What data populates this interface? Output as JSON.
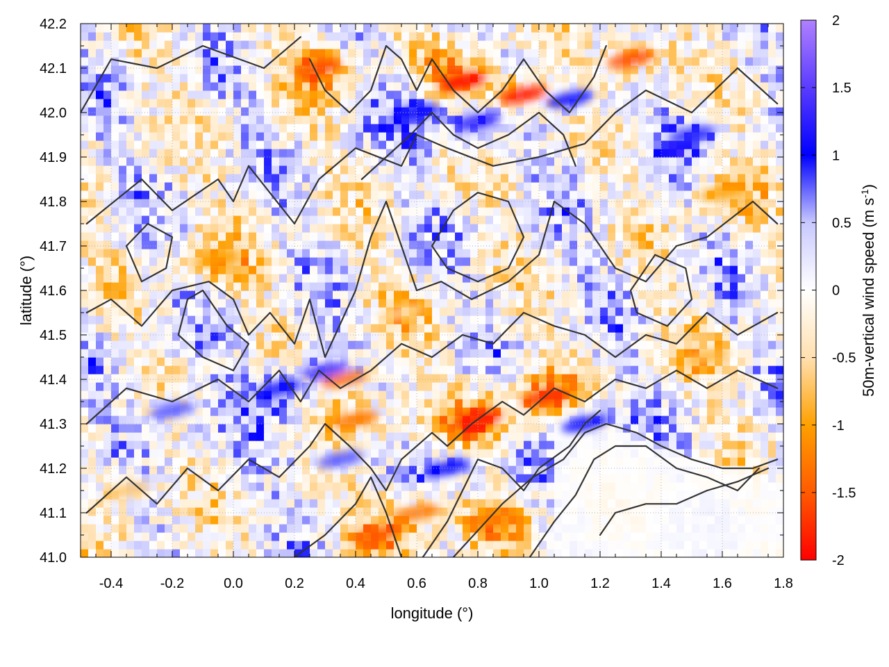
{
  "chart_data": {
    "type": "heatmap",
    "title": "",
    "xlabel": "longitude (°)",
    "ylabel": "latitude (°)",
    "colorbar_label": "50m-vertical wind speed (m s",
    "colorbar_label_exponent": "-1",
    "colorbar_label_suffix": ")",
    "xlim": [
      -0.5,
      1.8
    ],
    "ylim": [
      41.0,
      42.2
    ],
    "zlim": [
      -2,
      2
    ],
    "x_ticks": [
      -0.4,
      -0.2,
      0.0,
      0.2,
      0.4,
      0.6,
      0.8,
      1.0,
      1.2,
      1.4,
      1.6,
      1.8
    ],
    "x_tick_labels": [
      "-0.4",
      "-0.2",
      "0.0",
      "0.2",
      "0.4",
      "0.6",
      "0.8",
      "1.0",
      "1.2",
      "1.4",
      "1.6",
      "1.8"
    ],
    "y_ticks": [
      41.0,
      41.1,
      41.2,
      41.3,
      41.4,
      41.5,
      41.6,
      41.7,
      41.8,
      41.9,
      42.0,
      42.1,
      42.2
    ],
    "y_tick_labels": [
      "41.0",
      "41.1",
      "41.2",
      "41.3",
      "41.4",
      "41.5",
      "41.6",
      "41.7",
      "41.8",
      "41.9",
      "42.0",
      "42.1",
      "42.2"
    ],
    "colorbar_ticks": [
      2,
      1.5,
      1,
      0.5,
      0,
      -0.5,
      -1,
      -1.5,
      -2
    ],
    "colorbar_tick_labels": [
      "2",
      "1.5",
      "1",
      "0.5",
      "0",
      "-0.5",
      "-1",
      "-1.5",
      "-2"
    ],
    "colormap": [
      "#ff0000",
      "#ff5a00",
      "#ffa000",
      "#ffe0b0",
      "#ffffff",
      "#c8c8ff",
      "#0000ff",
      "#5a3cff",
      "#b080ff"
    ],
    "grid": true,
    "contour_color": "#333333",
    "hotspots": [
      {
        "lon": 0.75,
        "lat": 42.07,
        "w": -2.0
      },
      {
        "lon": 0.95,
        "lat": 42.04,
        "w": -1.9
      },
      {
        "lon": 0.28,
        "lat": 42.1,
        "w": -1.6
      },
      {
        "lon": 1.3,
        "lat": 42.12,
        "w": -1.6
      },
      {
        "lon": 0.8,
        "lat": 41.31,
        "w": -1.9
      },
      {
        "lon": 1.02,
        "lat": 41.36,
        "w": -1.7
      },
      {
        "lon": 0.36,
        "lat": 41.4,
        "w": -1.4
      },
      {
        "lon": 0.4,
        "lat": 41.31,
        "w": -1.3
      },
      {
        "lon": -0.05,
        "lat": 41.67,
        "w": -1.0
      },
      {
        "lon": 1.6,
        "lat": 41.82,
        "w": -1.0
      },
      {
        "lon": 0.47,
        "lat": 41.05,
        "w": -1.5
      },
      {
        "lon": 0.85,
        "lat": 41.08,
        "w": -1.2
      },
      {
        "lon": 0.6,
        "lat": 41.1,
        "w": -1.3
      },
      {
        "lon": 0.8,
        "lat": 41.98,
        "w": 1.2
      },
      {
        "lon": 0.6,
        "lat": 42.0,
        "w": 1.1
      },
      {
        "lon": 0.3,
        "lat": 41.42,
        "w": 1.3
      },
      {
        "lon": 0.15,
        "lat": 41.38,
        "w": 1.1
      },
      {
        "lon": 1.15,
        "lat": 41.3,
        "w": 1.0
      },
      {
        "lon": 1.5,
        "lat": 41.95,
        "w": 0.9
      },
      {
        "lon": 1.1,
        "lat": 42.03,
        "w": 1.0
      },
      {
        "lon": -0.2,
        "lat": 41.33,
        "w": 0.8
      },
      {
        "lon": 0.7,
        "lat": 41.2,
        "w": 1.0
      },
      {
        "lon": 0.35,
        "lat": 41.22,
        "w": 0.8
      },
      {
        "lon": 1.55,
        "lat": 41.45,
        "w": -0.8
      },
      {
        "lon": 0.55,
        "lat": 41.55,
        "w": -0.6
      },
      {
        "lon": -0.35,
        "lat": 41.15,
        "w": -0.7
      }
    ],
    "contour_lines": [
      [
        [
          -0.5,
          42.0
        ],
        [
          -0.4,
          42.12
        ],
        [
          -0.25,
          42.1
        ],
        [
          -0.1,
          42.15
        ],
        [
          0.1,
          42.1
        ],
        [
          0.22,
          42.17
        ]
      ],
      [
        [
          -0.48,
          41.75
        ],
        [
          -0.3,
          41.85
        ],
        [
          -0.2,
          41.78
        ],
        [
          -0.05,
          41.85
        ],
        [
          0.0,
          41.8
        ],
        [
          0.05,
          41.88
        ],
        [
          0.2,
          41.75
        ],
        [
          0.28,
          41.85
        ],
        [
          0.4,
          41.92
        ],
        [
          0.55,
          41.88
        ],
        [
          0.6,
          41.95
        ],
        [
          0.7,
          41.92
        ],
        [
          0.85,
          41.88
        ],
        [
          1.0,
          41.9
        ],
        [
          1.15,
          41.93
        ],
        [
          1.25,
          42.0
        ],
        [
          1.35,
          42.05
        ],
        [
          1.5,
          42.0
        ],
        [
          1.65,
          42.1
        ],
        [
          1.78,
          42.02
        ]
      ],
      [
        [
          -0.48,
          41.55
        ],
        [
          -0.4,
          41.58
        ],
        [
          -0.3,
          41.52
        ],
        [
          -0.2,
          41.6
        ],
        [
          -0.08,
          41.62
        ],
        [
          0.0,
          41.58
        ],
        [
          0.05,
          41.5
        ],
        [
          0.12,
          41.55
        ],
        [
          0.2,
          41.48
        ],
        [
          0.25,
          41.58
        ],
        [
          0.3,
          41.45
        ],
        [
          0.4,
          41.6
        ],
        [
          0.45,
          41.72
        ],
        [
          0.5,
          41.8
        ],
        [
          0.55,
          41.7
        ],
        [
          0.6,
          41.6
        ],
        [
          0.68,
          41.62
        ],
        [
          0.78,
          41.58
        ],
        [
          0.9,
          41.62
        ],
        [
          1.0,
          41.68
        ],
        [
          1.05,
          41.8
        ],
        [
          1.15,
          41.75
        ],
        [
          1.25,
          41.65
        ],
        [
          1.35,
          41.62
        ],
        [
          1.45,
          41.7
        ],
        [
          1.55,
          41.72
        ],
        [
          1.7,
          41.8
        ],
        [
          1.78,
          41.75
        ]
      ],
      [
        [
          -0.48,
          41.3
        ],
        [
          -0.35,
          41.38
        ],
        [
          -0.2,
          41.35
        ],
        [
          -0.05,
          41.4
        ],
        [
          0.05,
          41.35
        ],
        [
          0.15,
          41.42
        ],
        [
          0.22,
          41.35
        ],
        [
          0.28,
          41.42
        ],
        [
          0.35,
          41.38
        ],
        [
          0.45,
          41.42
        ],
        [
          0.55,
          41.48
        ],
        [
          0.65,
          41.45
        ],
        [
          0.75,
          41.5
        ],
        [
          0.85,
          41.48
        ],
        [
          0.95,
          41.55
        ],
        [
          1.05,
          41.52
        ],
        [
          1.15,
          41.5
        ],
        [
          1.25,
          41.45
        ],
        [
          1.35,
          41.5
        ],
        [
          1.45,
          41.48
        ],
        [
          1.55,
          41.55
        ],
        [
          1.65,
          41.5
        ],
        [
          1.78,
          41.55
        ]
      ],
      [
        [
          -0.48,
          41.1
        ],
        [
          -0.35,
          41.18
        ],
        [
          -0.25,
          41.12
        ],
        [
          -0.15,
          41.2
        ],
        [
          -0.05,
          41.15
        ],
        [
          0.05,
          41.22
        ],
        [
          0.15,
          41.18
        ],
        [
          0.25,
          41.25
        ],
        [
          0.3,
          41.3
        ],
        [
          0.38,
          41.25
        ],
        [
          0.45,
          41.2
        ],
        [
          0.5,
          41.15
        ],
        [
          0.55,
          41.22
        ],
        [
          0.65,
          41.28
        ],
        [
          0.7,
          41.25
        ],
        [
          0.78,
          41.3
        ],
        [
          0.88,
          41.35
        ],
        [
          0.95,
          41.32
        ],
        [
          1.05,
          41.38
        ],
        [
          1.15,
          41.35
        ],
        [
          1.25,
          41.4
        ],
        [
          1.35,
          41.38
        ],
        [
          1.45,
          41.42
        ],
        [
          1.55,
          41.38
        ],
        [
          1.65,
          41.42
        ],
        [
          1.78,
          41.38
        ]
      ],
      [
        [
          0.2,
          41.0
        ],
        [
          0.3,
          41.05
        ],
        [
          0.4,
          41.12
        ],
        [
          0.45,
          41.18
        ],
        [
          0.5,
          41.1
        ],
        [
          0.55,
          41.0
        ]
      ],
      [
        [
          0.62,
          41.0
        ],
        [
          0.7,
          41.08
        ],
        [
          0.75,
          41.15
        ],
        [
          0.8,
          41.22
        ],
        [
          0.88,
          41.2
        ],
        [
          0.95,
          41.15
        ],
        [
          1.0,
          41.2
        ],
        [
          1.1,
          41.25
        ],
        [
          1.15,
          41.3
        ],
        [
          1.2,
          41.33
        ]
      ],
      [
        [
          0.72,
          41.0
        ],
        [
          0.8,
          41.06
        ],
        [
          0.88,
          41.12
        ],
        [
          0.98,
          41.18
        ],
        [
          1.08,
          41.22
        ],
        [
          1.15,
          41.28
        ],
        [
          1.22,
          41.3
        ],
        [
          1.32,
          41.28
        ],
        [
          1.4,
          41.25
        ],
        [
          1.5,
          41.22
        ],
        [
          1.6,
          41.2
        ],
        [
          1.7,
          41.2
        ],
        [
          1.78,
          41.22
        ]
      ],
      [
        [
          0.97,
          41.0
        ],
        [
          1.05,
          41.08
        ],
        [
          1.12,
          41.14
        ],
        [
          1.18,
          41.22
        ],
        [
          1.25,
          41.25
        ],
        [
          1.35,
          41.25
        ],
        [
          1.45,
          41.2
        ],
        [
          1.55,
          41.18
        ],
        [
          1.65,
          41.15
        ],
        [
          1.72,
          41.2
        ]
      ],
      [
        [
          1.2,
          41.05
        ],
        [
          1.25,
          41.1
        ],
        [
          1.35,
          41.12
        ],
        [
          1.45,
          41.12
        ],
        [
          1.55,
          41.15
        ],
        [
          1.65,
          41.17
        ],
        [
          1.75,
          41.2
        ]
      ],
      [
        [
          0.25,
          42.12
        ],
        [
          0.3,
          42.05
        ],
        [
          0.38,
          42.0
        ],
        [
          0.45,
          42.05
        ],
        [
          0.5,
          42.15
        ],
        [
          0.55,
          42.12
        ],
        [
          0.6,
          42.05
        ],
        [
          0.65,
          42.12
        ],
        [
          0.72,
          42.05
        ],
        [
          0.8,
          42.0
        ],
        [
          0.88,
          42.05
        ],
        [
          0.95,
          42.12
        ],
        [
          1.02,
          42.05
        ],
        [
          1.1,
          42.0
        ],
        [
          1.18,
          42.08
        ],
        [
          1.22,
          42.15
        ]
      ],
      [
        [
          0.42,
          41.85
        ],
        [
          0.5,
          41.9
        ],
        [
          0.58,
          41.95
        ],
        [
          0.65,
          42.0
        ],
        [
          0.72,
          41.95
        ],
        [
          0.8,
          41.92
        ],
        [
          0.9,
          41.95
        ],
        [
          1.0,
          42.0
        ],
        [
          1.08,
          41.95
        ],
        [
          1.12,
          41.88
        ]
      ],
      [
        [
          -0.1,
          41.6
        ],
        [
          -0.02,
          41.52
        ],
        [
          0.05,
          41.48
        ],
        [
          0.0,
          41.42
        ],
        [
          -0.1,
          41.45
        ],
        [
          -0.18,
          41.5
        ],
        [
          -0.15,
          41.58
        ],
        [
          -0.1,
          41.6
        ]
      ],
      [
        [
          0.65,
          41.7
        ],
        [
          0.72,
          41.78
        ],
        [
          0.8,
          41.82
        ],
        [
          0.9,
          41.8
        ],
        [
          0.95,
          41.72
        ],
        [
          0.9,
          41.65
        ],
        [
          0.8,
          41.62
        ],
        [
          0.7,
          41.65
        ],
        [
          0.65,
          41.7
        ]
      ],
      [
        [
          1.3,
          41.6
        ],
        [
          1.38,
          41.68
        ],
        [
          1.48,
          41.65
        ],
        [
          1.5,
          41.58
        ],
        [
          1.42,
          41.52
        ],
        [
          1.32,
          41.55
        ],
        [
          1.3,
          41.6
        ]
      ],
      [
        [
          -0.35,
          41.7
        ],
        [
          -0.28,
          41.75
        ],
        [
          -0.2,
          41.72
        ],
        [
          -0.22,
          41.65
        ],
        [
          -0.3,
          41.62
        ],
        [
          -0.35,
          41.7
        ]
      ]
    ]
  }
}
